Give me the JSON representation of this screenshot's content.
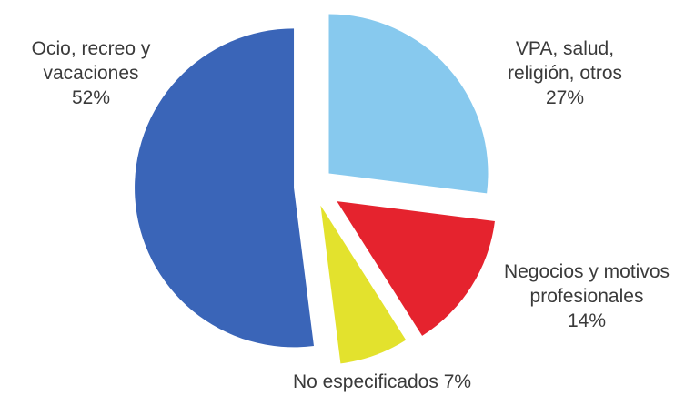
{
  "chart_data": {
    "type": "pie",
    "title": "",
    "legend": "none",
    "slices": [
      {
        "label_lines": [
          "Ocio, recreo y",
          "vacaciones"
        ],
        "value_label": "52%",
        "value": 52,
        "color": "#3a65b8"
      },
      {
        "label_lines": [
          "VPA, salud,",
          "religión, otros"
        ],
        "value_label": "27%",
        "value": 27,
        "color": "#87c9ee"
      },
      {
        "label_lines": [
          "Negocios y motivos",
          "profesionales"
        ],
        "value_label": "14%",
        "value": 14,
        "color": "#e5232e"
      },
      {
        "label_lines": [
          "No especificados 7%"
        ],
        "value_label": "",
        "value": 7,
        "color": "#e3e22d"
      }
    ]
  }
}
